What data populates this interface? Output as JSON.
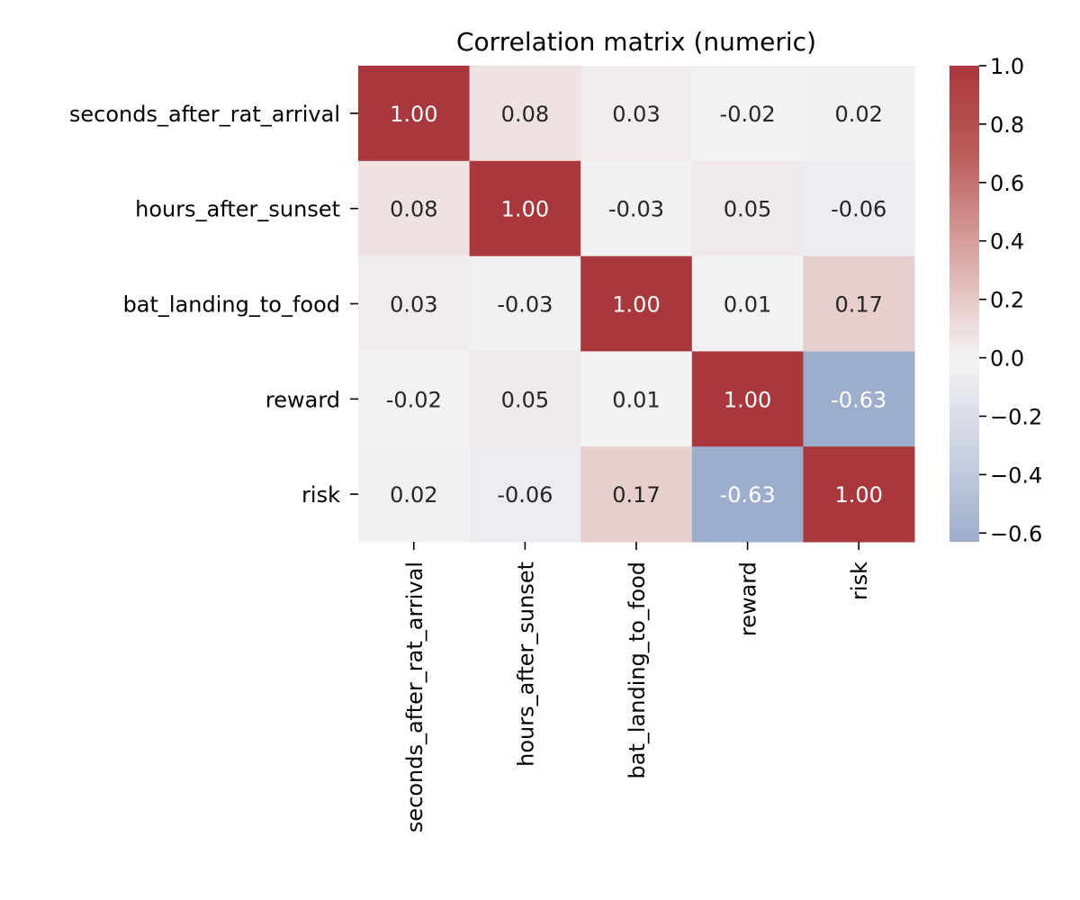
{
  "chart_data": {
    "type": "heatmap",
    "title": "Correlation matrix (numeric)",
    "xlabel": "",
    "ylabel": "",
    "row_labels": [
      "seconds_after_rat_arrival",
      "hours_after_sunset",
      "bat_landing_to_food",
      "reward",
      "risk"
    ],
    "col_labels": [
      "seconds_after_rat_arrival",
      "hours_after_sunset",
      "bat_landing_to_food",
      "reward",
      "risk"
    ],
    "values": [
      [
        1.0,
        0.08,
        0.03,
        -0.02,
        0.02
      ],
      [
        0.08,
        1.0,
        -0.03,
        0.05,
        -0.06
      ],
      [
        0.03,
        -0.03,
        1.0,
        0.01,
        0.17
      ],
      [
        -0.02,
        0.05,
        0.01,
        1.0,
        -0.63
      ],
      [
        0.02,
        -0.06,
        0.17,
        -0.63,
        1.0
      ]
    ],
    "value_format": "2 decimals",
    "colorbar": {
      "range": [
        -0.63,
        1.0
      ],
      "center": 0.0,
      "ticks": [
        1.0,
        0.8,
        0.6,
        0.4,
        0.2,
        0.0,
        -0.2,
        -0.4,
        -0.6
      ],
      "tick_labels": [
        "1.0",
        "0.8",
        "0.6",
        "0.4",
        "0.2",
        "0.0",
        "−0.2",
        "−0.4",
        "−0.6"
      ],
      "colormap": "vlag",
      "positive_color": "#a9373b",
      "negative_color": "#2369bd",
      "center_color": "#f4f4f4"
    },
    "text_colors": {
      "dark": "#262626",
      "light": "#ffffff"
    },
    "grid": false
  }
}
